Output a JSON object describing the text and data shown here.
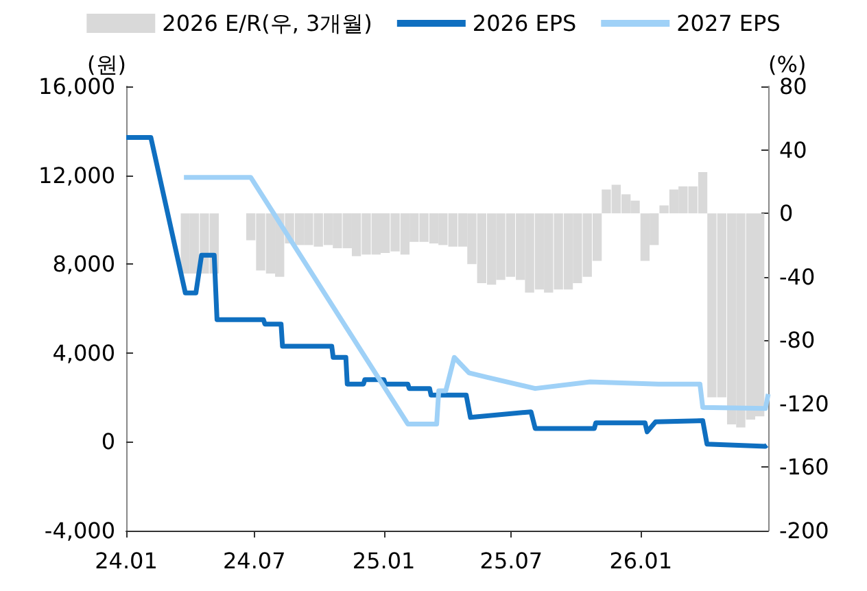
{
  "chart_data": {
    "type": "line",
    "ylabel": "(원)",
    "y2label": "(%)",
    "legend": "top",
    "marker": "none",
    "xlim": [
      "2024-01-01",
      "2026-07-01"
    ],
    "xticks": [
      {
        "value": "2024-01-01",
        "label": "24.01"
      },
      {
        "value": "2024-07-01",
        "label": "24.07"
      },
      {
        "value": "2025-01-01",
        "label": "25.01"
      },
      {
        "value": "2025-07-01",
        "label": "25.07"
      },
      {
        "value": "2026-01-01",
        "label": "26.01"
      }
    ],
    "ylim": [
      -4000,
      16000
    ],
    "yticks": [
      {
        "value": -4000,
        "label": "-4,000"
      },
      0,
      {
        "value": 4000,
        "label": "4,000"
      },
      {
        "value": 8000,
        "label": "8,000"
      },
      {
        "value": 12000,
        "label": "12,000"
      },
      {
        "value": 16000,
        "label": "16,000"
      }
    ],
    "y2lim": [
      -200,
      80
    ],
    "y2ticks": [
      -200,
      -160,
      -120,
      -80,
      -40,
      0,
      40,
      80
    ],
    "series": [
      {
        "name": "2026 E/R(우, 3개월)",
        "type": "bar",
        "axis": "y2",
        "color": "#d9d9d9",
        "x": [
          "2024-03-25",
          "2024-04-07",
          "2024-04-21",
          "2024-05-05",
          "2024-06-26",
          "2024-07-10",
          "2024-07-24",
          "2024-08-06",
          "2024-08-20",
          "2024-09-03",
          "2024-09-16",
          "2024-09-30",
          "2024-10-14",
          "2024-10-27",
          "2024-11-10",
          "2024-11-23",
          "2024-12-07",
          "2024-12-21",
          "2025-01-03",
          "2025-01-17",
          "2025-01-31",
          "2025-02-13",
          "2025-02-27",
          "2025-03-13",
          "2025-03-26",
          "2025-04-09",
          "2025-04-23",
          "2025-05-06",
          "2025-05-20",
          "2025-06-03",
          "2025-06-16",
          "2025-06-30",
          "2025-07-14",
          "2025-07-27",
          "2025-08-10",
          "2025-08-23",
          "2025-09-06",
          "2025-09-20",
          "2025-10-03",
          "2025-10-17",
          "2025-10-31",
          "2025-11-13",
          "2025-11-27",
          "2025-12-11",
          "2025-12-24",
          "2026-01-07",
          "2026-01-20",
          "2026-02-03",
          "2026-02-17",
          "2026-03-02",
          "2026-03-16",
          "2026-03-30",
          "2026-04-12",
          "2026-04-26",
          "2026-05-10",
          "2026-05-23",
          "2026-06-06",
          "2026-06-19"
        ],
        "values": [
          -38,
          -38,
          -38,
          -38,
          -17,
          -36,
          -38,
          -40,
          -19,
          -20,
          -20,
          -21,
          -20,
          -22,
          -22,
          -27,
          -26,
          -26,
          -25,
          -24,
          -26,
          -18,
          -18,
          -19,
          -20,
          -21,
          -21,
          -32,
          -44,
          -45,
          -42,
          -40,
          -42,
          -50,
          -48,
          -50,
          -48,
          -48,
          -44,
          -40,
          -30,
          15,
          18,
          12,
          8,
          -30,
          -20,
          5,
          15,
          17,
          17,
          26,
          -116,
          -116,
          -133,
          -135,
          -130,
          -128
        ]
      },
      {
        "name": "2026 EPS",
        "color": "#0f6fc0",
        "x": [
          "2024-01-01",
          "2024-02-05",
          "2024-03-25",
          "2024-04-09",
          "2024-04-17",
          "2024-05-05",
          "2024-05-09",
          "2024-07-14",
          "2024-07-16",
          "2024-08-08",
          "2024-08-10",
          "2024-10-19",
          "2024-10-21",
          "2024-11-08",
          "2024-11-10",
          "2024-12-03",
          "2024-12-05",
          "2025-01-01",
          "2025-01-03",
          "2025-02-04",
          "2025-02-06",
          "2025-03-07",
          "2025-03-09",
          "2025-04-28",
          "2025-05-04",
          "2025-07-29",
          "2025-08-04",
          "2025-10-27",
          "2025-10-29",
          "2026-01-07",
          "2026-01-10",
          "2026-01-22",
          "2026-03-30",
          "2026-04-05",
          "2026-06-27",
          "2026-06-29"
        ],
        "values": [
          13700,
          13700,
          6700,
          6700,
          8400,
          8400,
          5500,
          5500,
          5300,
          5300,
          4300,
          4300,
          3800,
          3800,
          2600,
          2600,
          2800,
          2800,
          2600,
          2600,
          2400,
          2400,
          2100,
          2100,
          1100,
          1350,
          600,
          600,
          850,
          850,
          450,
          900,
          950,
          -100,
          -200,
          -150
        ]
      },
      {
        "name": "2027 EPS",
        "color": "#9fd1f7",
        "x": [
          "2024-03-23",
          "2024-06-26",
          "2025-02-04",
          "2025-03-17",
          "2025-03-20",
          "2025-03-30",
          "2025-04-11",
          "2025-05-02",
          "2025-05-28",
          "2025-08-04",
          "2025-10-21",
          "2026-01-26",
          "2026-03-26",
          "2026-03-30",
          "2026-06-27",
          "2026-07-01"
        ],
        "values": [
          11900,
          11900,
          800,
          800,
          2300,
          2300,
          3800,
          3100,
          2900,
          2400,
          2700,
          2600,
          2600,
          1550,
          1500,
          2150
        ]
      }
    ]
  }
}
